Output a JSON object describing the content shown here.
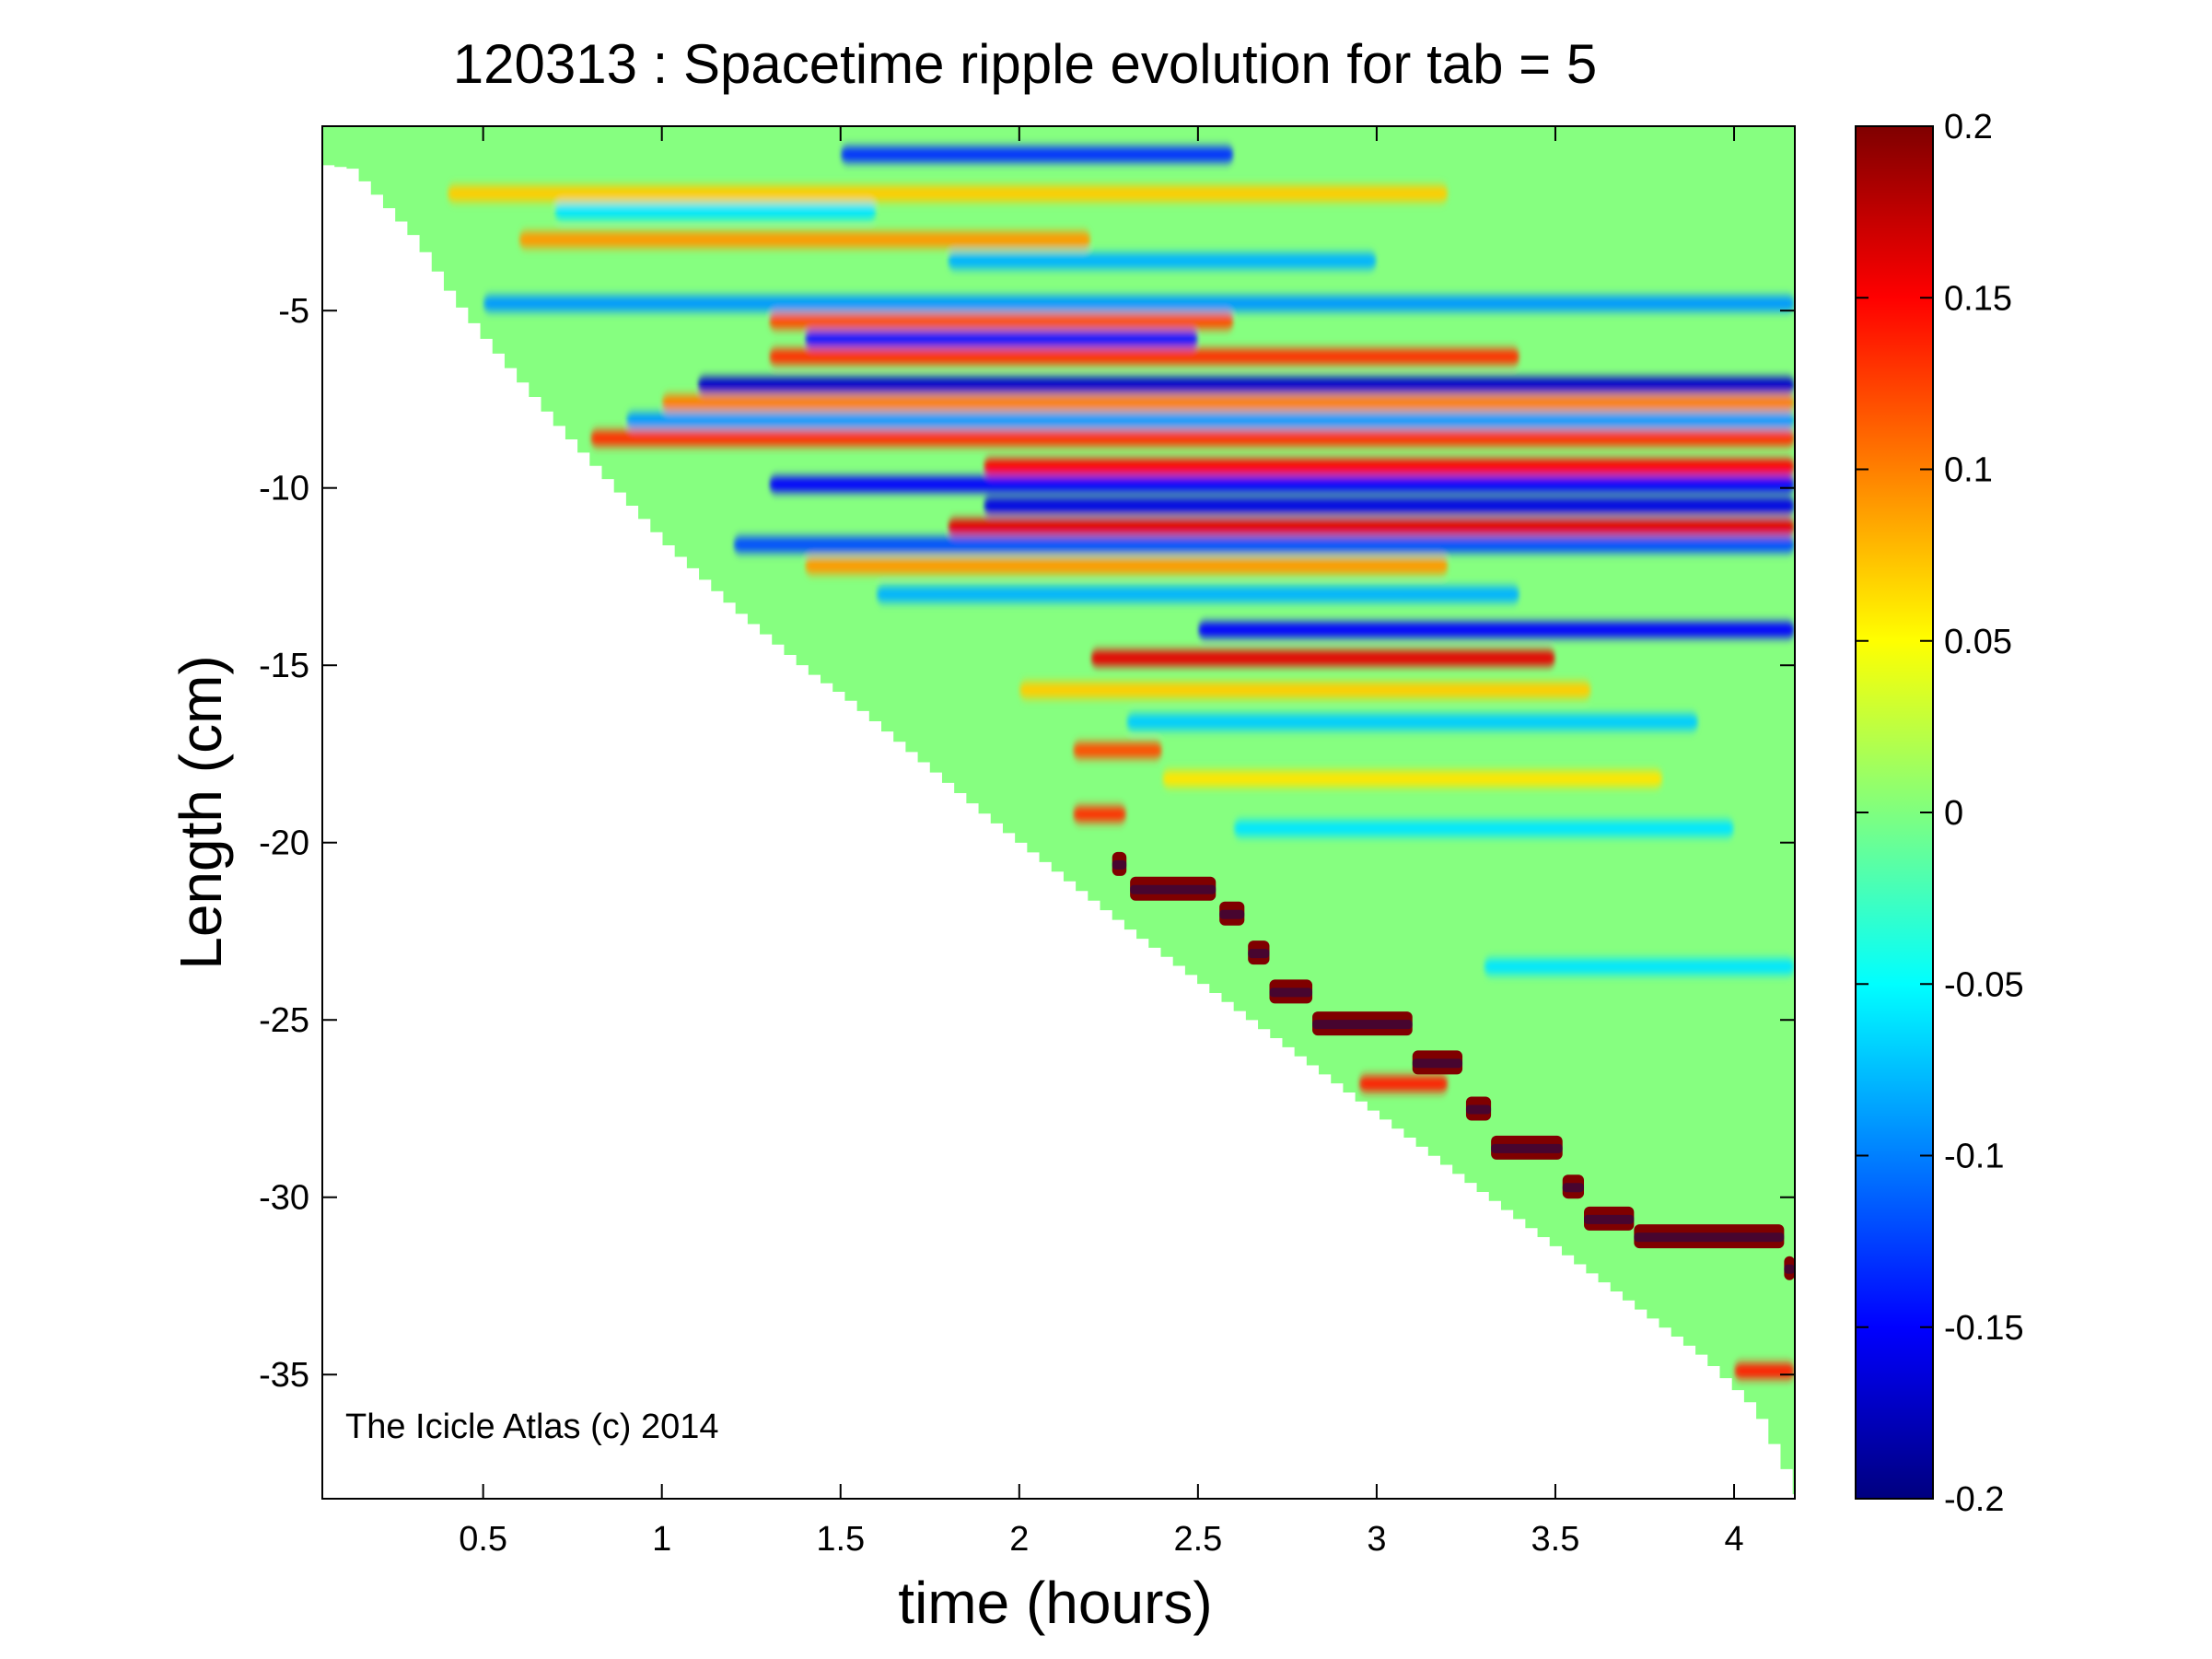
{
  "chart_data": {
    "type": "heatmap",
    "title": "120313 : Spacetime ripple evolution for tab = 5",
    "xlabel": "time (hours)",
    "ylabel": "Length (cm)",
    "xlim": [
      0.05,
      4.17
    ],
    "ylim": [
      -38.5,
      0.2
    ],
    "x_ticks": [
      0.5,
      1,
      1.5,
      2,
      2.5,
      3,
      3.5,
      4
    ],
    "x_tick_labels": [
      "0.5",
      "1",
      "1.5",
      "2",
      "2.5",
      "3",
      "3.5",
      "4"
    ],
    "y_ticks": [
      -5,
      -10,
      -15,
      -20,
      -25,
      -30,
      -35
    ],
    "y_tick_labels": [
      "-5",
      "-10",
      "-15",
      "-20",
      "-25",
      "-30",
      "-35"
    ],
    "colorbar": {
      "range": [
        -0.2,
        0.2
      ],
      "ticks": [
        0.2,
        0.15,
        0.1,
        0.05,
        0,
        -0.05,
        -0.1,
        -0.15,
        -0.2
      ],
      "tick_labels": [
        "0.2",
        "0.15",
        "0.1",
        "0.05",
        "0",
        "-0.05",
        "-0.1",
        "-0.15",
        "-0.2"
      ],
      "colormap": "jet",
      "placement": "right"
    },
    "grid": false,
    "annotation": "The Icicle Atlas (c) 2014",
    "growth_front": {
      "x": [
        0.05,
        0.12,
        0.3,
        0.4,
        0.5,
        0.7,
        0.9,
        1.0,
        1.2,
        1.4,
        1.5,
        1.7,
        1.9,
        2.1,
        2.3,
        2.5,
        2.7,
        2.9,
        3.1,
        3.3,
        3.5,
        3.7,
        3.9,
        4.05,
        4.17
      ],
      "y": [
        -0.9,
        -1.0,
        -3.0,
        -4.6,
        -5.9,
        -8.3,
        -10.5,
        -11.6,
        -13.5,
        -15.2,
        -15.9,
        -17.6,
        -19.3,
        -20.9,
        -22.5,
        -24.0,
        -25.5,
        -27.0,
        -28.5,
        -30.0,
        -31.5,
        -33.0,
        -34.5,
        -36.0,
        -38.5
      ]
    },
    "ripple_bands": [
      {
        "y": -0.6,
        "value": -0.13,
        "x_range": [
          1.5,
          2.6
        ]
      },
      {
        "y": -1.7,
        "value": 0.07,
        "x_range": [
          0.4,
          3.2
        ]
      },
      {
        "y": -2.2,
        "value": -0.06,
        "x_range": [
          0.7,
          1.6
        ]
      },
      {
        "y": -3.0,
        "value": 0.09,
        "x_range": [
          0.6,
          2.2
        ]
      },
      {
        "y": -3.6,
        "value": -0.08,
        "x_range": [
          1.8,
          3.0
        ]
      },
      {
        "y": -4.8,
        "value": -0.09,
        "x_range": [
          0.5,
          4.17
        ]
      },
      {
        "y": -5.3,
        "value": 0.12,
        "x_range": [
          1.3,
          2.6
        ]
      },
      {
        "y": -5.8,
        "value": -0.14,
        "x_range": [
          1.4,
          2.5
        ]
      },
      {
        "y": -6.3,
        "value": 0.13,
        "x_range": [
          1.3,
          3.4
        ]
      },
      {
        "y": -7.1,
        "value": -0.17,
        "x_range": [
          1.1,
          4.17
        ]
      },
      {
        "y": -7.6,
        "value": 0.1,
        "x_range": [
          1.0,
          4.17
        ]
      },
      {
        "y": -8.1,
        "value": -0.09,
        "x_range": [
          0.9,
          4.17
        ]
      },
      {
        "y": -8.6,
        "value": 0.13,
        "x_range": [
          0.8,
          4.17
        ]
      },
      {
        "y": -9.4,
        "value": 0.15,
        "x_range": [
          1.9,
          4.17
        ]
      },
      {
        "y": -9.9,
        "value": -0.15,
        "x_range": [
          1.3,
          4.17
        ]
      },
      {
        "y": -10.5,
        "value": -0.16,
        "x_range": [
          1.9,
          4.17
        ]
      },
      {
        "y": -11.1,
        "value": 0.16,
        "x_range": [
          1.8,
          4.17
        ]
      },
      {
        "y": -11.6,
        "value": -0.12,
        "x_range": [
          1.2,
          4.17
        ]
      },
      {
        "y": -12.2,
        "value": 0.09,
        "x_range": [
          1.4,
          3.2
        ]
      },
      {
        "y": -13.0,
        "value": -0.08,
        "x_range": [
          1.6,
          3.4
        ]
      },
      {
        "y": -14.0,
        "value": -0.15,
        "x_range": [
          2.5,
          4.17
        ]
      },
      {
        "y": -14.8,
        "value": 0.16,
        "x_range": [
          2.2,
          3.5
        ]
      },
      {
        "y": -15.7,
        "value": 0.07,
        "x_range": [
          2.0,
          3.6
        ]
      },
      {
        "y": -16.6,
        "value": -0.07,
        "x_range": [
          2.3,
          3.9
        ]
      },
      {
        "y": -17.4,
        "value": 0.12,
        "x_range": [
          2.15,
          2.4
        ]
      },
      {
        "y": -18.2,
        "value": 0.06,
        "x_range": [
          2.4,
          3.8
        ]
      },
      {
        "y": -19.2,
        "value": 0.13,
        "x_range": [
          2.15,
          2.3
        ]
      },
      {
        "y": -19.6,
        "value": -0.06,
        "x_range": [
          2.6,
          4.0
        ]
      },
      {
        "y": -23.5,
        "value": -0.06,
        "x_range": [
          3.3,
          4.17
        ]
      },
      {
        "y": -26.8,
        "value": 0.14,
        "x_range": [
          2.95,
          3.2
        ]
      },
      {
        "y": -34.9,
        "value": 0.14,
        "x_range": [
          4.0,
          4.17
        ]
      }
    ],
    "dark_red_trail": [
      {
        "x": [
          2.26,
          2.3
        ],
        "y": -20.6
      },
      {
        "x": [
          2.31,
          2.55
        ],
        "y": -21.3
      },
      {
        "x": [
          2.56,
          2.63
        ],
        "y": -22.0
      },
      {
        "x": [
          2.64,
          2.7
        ],
        "y": -23.1
      },
      {
        "x": [
          2.7,
          2.82
        ],
        "y": -24.2
      },
      {
        "x": [
          2.82,
          3.1
        ],
        "y": -25.1
      },
      {
        "x": [
          3.1,
          3.24
        ],
        "y": -26.2
      },
      {
        "x": [
          3.25,
          3.32
        ],
        "y": -27.5
      },
      {
        "x": [
          3.32,
          3.52
        ],
        "y": -28.6
      },
      {
        "x": [
          3.52,
          3.58
        ],
        "y": -29.7
      },
      {
        "x": [
          3.58,
          3.72
        ],
        "y": -30.6
      },
      {
        "x": [
          3.72,
          4.14
        ],
        "y": -31.1
      },
      {
        "x": [
          4.14,
          4.17
        ],
        "y": -32.0
      }
    ]
  }
}
